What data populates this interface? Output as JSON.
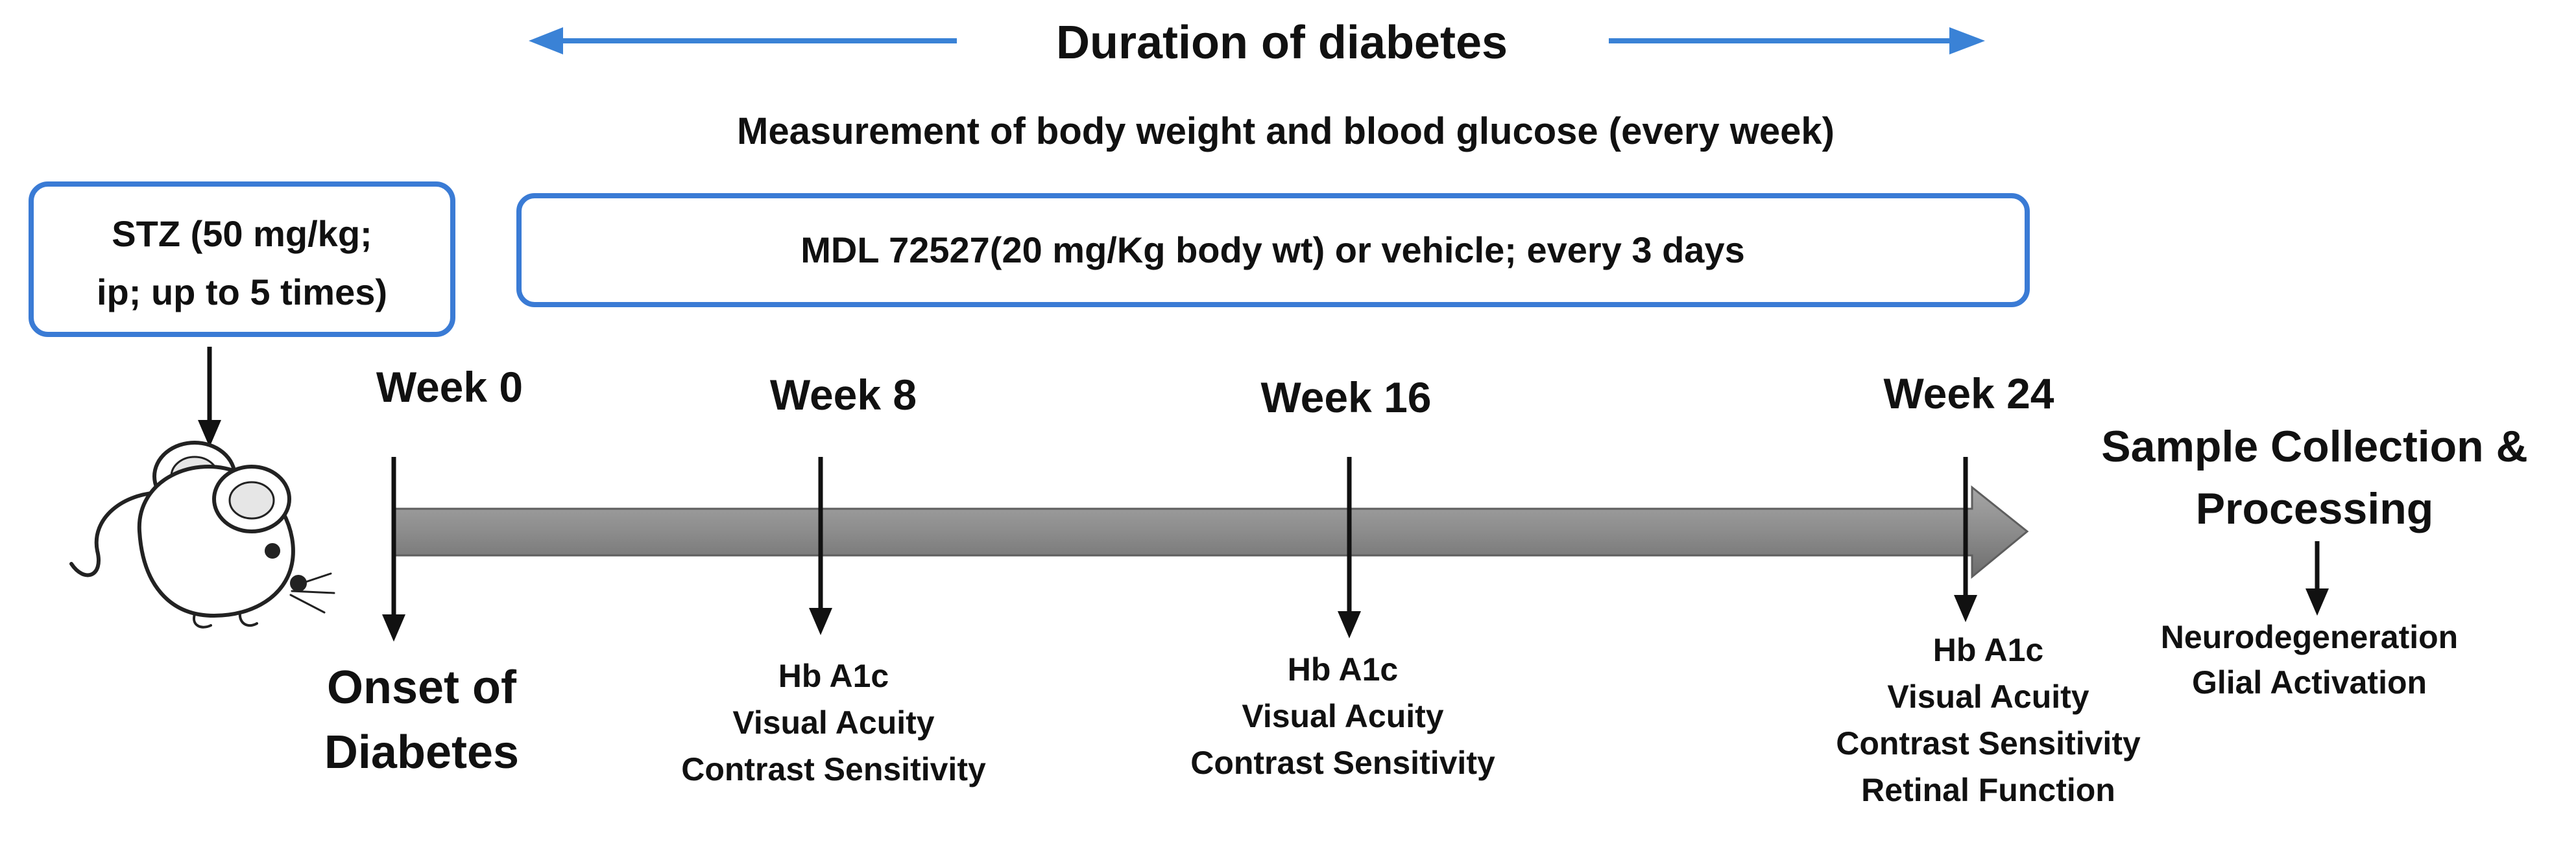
{
  "header": {
    "duration_label": "Duration of diabetes",
    "measurement_label": "Measurement of  body weight and blood glucose (every week)"
  },
  "treatment": {
    "stz_line1": "STZ (50 mg/kg;",
    "stz_line2": "ip; up to 5 times)",
    "mdl_label": "MDL 72527(20 mg/Kg body wt) or vehicle; every 3 days"
  },
  "timeline": {
    "weeks": [
      {
        "label": "Week 0",
        "below": [
          "Onset of",
          "Diabetes"
        ]
      },
      {
        "label": "Week 8",
        "below": [
          "Hb A1c",
          "Visual Acuity",
          "Contrast Sensitivity"
        ]
      },
      {
        "label": "Week 16",
        "below": [
          "Hb A1c",
          "Visual Acuity",
          "Contrast Sensitivity"
        ]
      },
      {
        "label": "Week 24",
        "below": [
          "Hb A1c",
          "Visual Acuity",
          "Contrast Sensitivity",
          "Retinal Function"
        ]
      }
    ],
    "sample_collection": {
      "title_line1": "Sample Collection &",
      "title_line2": "Processing",
      "outcomes": [
        "Neurodegeneration",
        "Glial Activation"
      ]
    }
  },
  "colors": {
    "box_border": "#3a7bd5",
    "span_arrow": "#3a82d6",
    "timeline_bar": "#8c8c8c",
    "timeline_bar_dark": "#6d6d6d",
    "text": "#111111"
  },
  "icons": {
    "mouse": "mouse-icon"
  }
}
